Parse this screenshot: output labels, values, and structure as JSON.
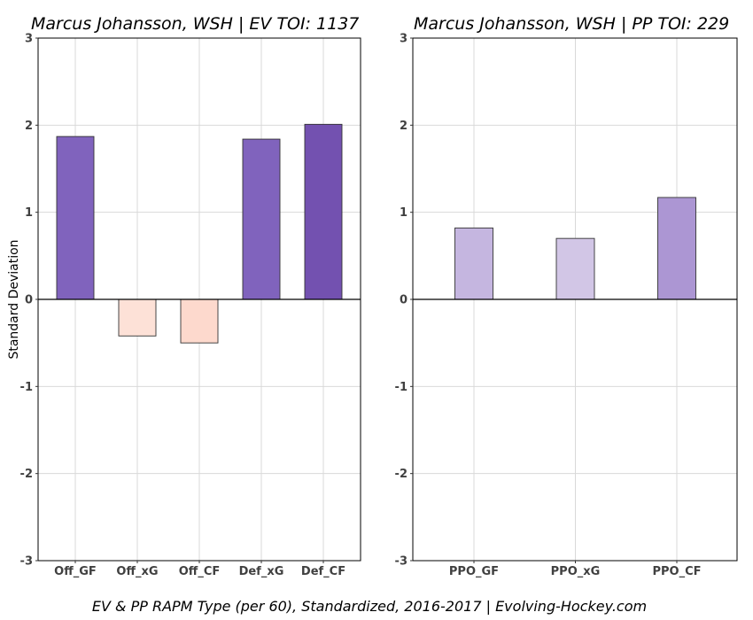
{
  "chart_data": [
    {
      "type": "bar",
      "title": "Marcus Johansson, WSH  |  EV TOI: 1137",
      "ylabel": "Standard Deviation",
      "ylim": [
        -3,
        3
      ],
      "yticks": [
        -3,
        -2,
        -1,
        0,
        1,
        2,
        3
      ],
      "grid": true,
      "categories": [
        "Off_GF",
        "Off_xG",
        "Off_CF",
        "Def_xG",
        "Def_CF"
      ],
      "values": [
        1.87,
        -0.42,
        -0.5,
        1.84,
        2.01
      ],
      "colors": [
        "#8063bd",
        "#fde1d7",
        "#fdd9cd",
        "#8063bd",
        "#7351b0"
      ]
    },
    {
      "type": "bar",
      "title": "Marcus Johansson, WSH  |  PP TOI: 229",
      "ylim": [
        -3,
        3
      ],
      "yticks": [
        -3,
        -2,
        -1,
        0,
        1,
        2,
        3
      ],
      "grid": true,
      "categories": [
        "PPO_GF",
        "PPO_xG",
        "PPO_CF"
      ],
      "values": [
        0.82,
        0.7,
        1.17
      ],
      "colors": [
        "#c5b6e0",
        "#d2c6e6",
        "#ac96d3"
      ]
    }
  ],
  "caption": "EV & PP RAPM Type (per 60), Standardized, 2016-2017    |    Evolving-Hockey.com"
}
